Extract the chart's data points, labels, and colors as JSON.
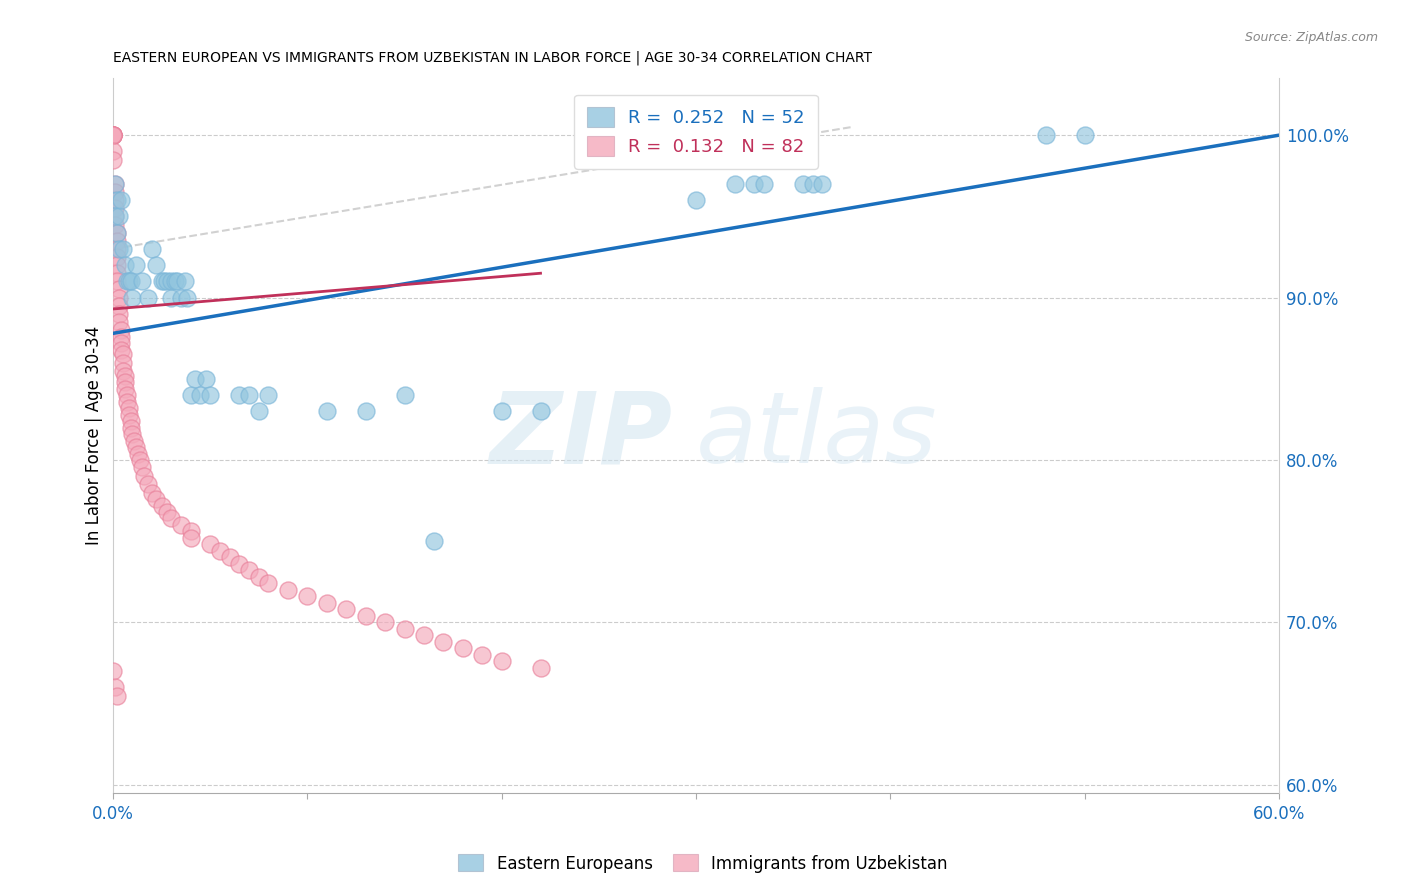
{
  "title": "EASTERN EUROPEAN VS IMMIGRANTS FROM UZBEKISTAN IN LABOR FORCE | AGE 30-34 CORRELATION CHART",
  "source": "Source: ZipAtlas.com",
  "ylabel_label": "In Labor Force | Age 30-34",
  "blue_color": "#92c5de",
  "pink_color": "#f4a9bb",
  "blue_line_color": "#1a6fbd",
  "pink_line_color": "#c0305a",
  "watermark_zip": "ZIP",
  "watermark_atlas": "atlas",
  "blue_scatter_x": [
    0.001,
    0.002,
    0.001,
    0.003,
    0.004,
    0.002,
    0.003,
    0.005,
    0.006,
    0.007,
    0.008,
    0.009,
    0.01,
    0.012,
    0.015,
    0.018,
    0.02,
    0.022,
    0.025,
    0.026,
    0.028,
    0.03,
    0.03,
    0.032,
    0.033,
    0.035,
    0.037,
    0.038,
    0.04,
    0.042,
    0.045,
    0.048,
    0.05,
    0.065,
    0.07,
    0.075,
    0.08,
    0.11,
    0.13,
    0.15,
    0.165,
    0.2,
    0.22,
    0.3,
    0.32,
    0.33,
    0.335,
    0.355,
    0.36,
    0.365,
    0.48,
    0.5
  ],
  "blue_scatter_y": [
    0.97,
    0.96,
    0.95,
    0.95,
    0.96,
    0.94,
    0.93,
    0.93,
    0.92,
    0.91,
    0.91,
    0.91,
    0.9,
    0.92,
    0.91,
    0.9,
    0.93,
    0.92,
    0.91,
    0.91,
    0.91,
    0.91,
    0.9,
    0.91,
    0.91,
    0.9,
    0.91,
    0.9,
    0.84,
    0.85,
    0.84,
    0.85,
    0.84,
    0.84,
    0.84,
    0.83,
    0.84,
    0.83,
    0.83,
    0.84,
    0.75,
    0.83,
    0.83,
    0.96,
    0.97,
    0.97,
    0.97,
    0.97,
    0.97,
    0.97,
    1.0,
    1.0
  ],
  "pink_scatter_x": [
    0.0,
    0.0,
    0.0,
    0.0,
    0.0,
    0.0,
    0.0,
    0.0,
    0.001,
    0.001,
    0.001,
    0.001,
    0.001,
    0.001,
    0.002,
    0.002,
    0.002,
    0.002,
    0.002,
    0.002,
    0.002,
    0.003,
    0.003,
    0.003,
    0.003,
    0.003,
    0.004,
    0.004,
    0.004,
    0.004,
    0.005,
    0.005,
    0.005,
    0.006,
    0.006,
    0.006,
    0.007,
    0.007,
    0.008,
    0.008,
    0.009,
    0.009,
    0.01,
    0.011,
    0.012,
    0.013,
    0.014,
    0.015,
    0.016,
    0.018,
    0.02,
    0.022,
    0.025,
    0.028,
    0.03,
    0.035,
    0.04,
    0.04,
    0.05,
    0.055,
    0.06,
    0.065,
    0.07,
    0.075,
    0.08,
    0.09,
    0.1,
    0.11,
    0.12,
    0.13,
    0.14,
    0.15,
    0.16,
    0.17,
    0.18,
    0.19,
    0.2,
    0.22,
    0.0,
    0.001,
    0.002
  ],
  "pink_scatter_y": [
    1.0,
    1.0,
    1.0,
    1.0,
    1.0,
    1.0,
    0.99,
    0.985,
    0.97,
    0.965,
    0.96,
    0.955,
    0.95,
    0.945,
    0.94,
    0.935,
    0.93,
    0.925,
    0.92,
    0.915,
    0.91,
    0.905,
    0.9,
    0.895,
    0.89,
    0.885,
    0.88,
    0.876,
    0.872,
    0.868,
    0.865,
    0.86,
    0.855,
    0.852,
    0.848,
    0.844,
    0.84,
    0.836,
    0.832,
    0.828,
    0.824,
    0.82,
    0.816,
    0.812,
    0.808,
    0.804,
    0.8,
    0.796,
    0.79,
    0.785,
    0.78,
    0.776,
    0.772,
    0.768,
    0.764,
    0.76,
    0.756,
    0.752,
    0.748,
    0.744,
    0.74,
    0.736,
    0.732,
    0.728,
    0.724,
    0.72,
    0.716,
    0.712,
    0.708,
    0.704,
    0.7,
    0.696,
    0.692,
    0.688,
    0.684,
    0.68,
    0.676,
    0.672,
    0.67,
    0.66,
    0.655
  ],
  "blue_line_x": [
    0.0,
    0.6
  ],
  "blue_line_y": [
    0.878,
    1.0
  ],
  "pink_line_x": [
    0.0,
    0.22
  ],
  "pink_line_y": [
    0.893,
    0.915
  ],
  "diag_line_x": [
    0.0,
    0.38
  ],
  "diag_line_y": [
    0.93,
    1.005
  ],
  "xlim": [
    0.0,
    0.6
  ],
  "ylim": [
    0.595,
    1.035
  ],
  "ytick_vals": [
    0.6,
    0.7,
    0.8,
    0.9,
    1.0
  ],
  "xtick_vals": [
    0.0,
    0.1,
    0.2,
    0.3,
    0.4,
    0.5,
    0.6
  ],
  "figsize": [
    14.06,
    8.92
  ],
  "dpi": 100
}
